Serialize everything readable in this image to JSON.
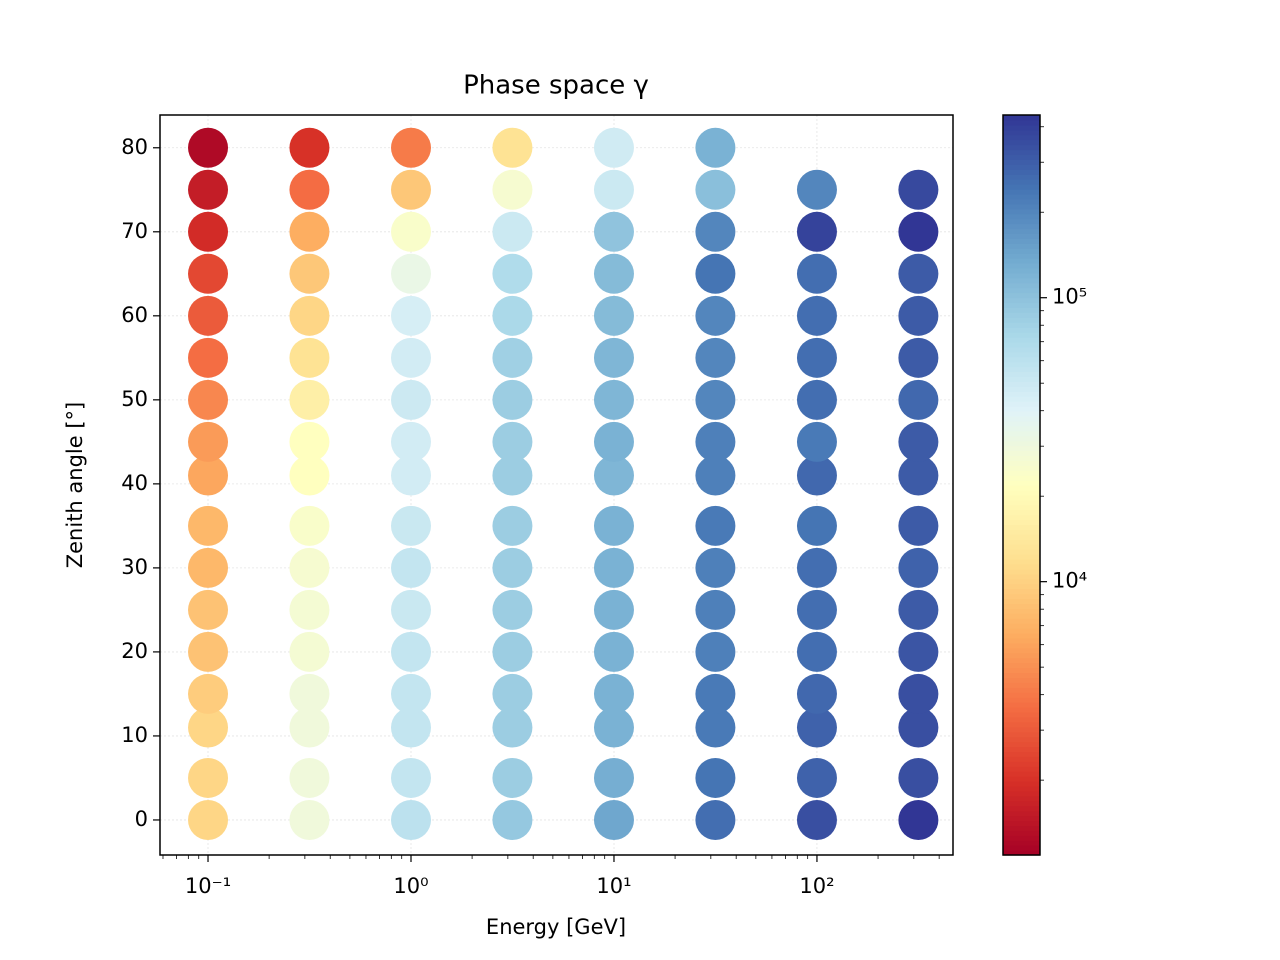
{
  "chart_data": {
    "type": "scatter",
    "title": "Phase space γ",
    "x_label": "Energy [GeV]",
    "y_label": "Zenith angle [°]",
    "xlog": true,
    "grid": true,
    "xlim": [
      0.058,
      468
    ],
    "ylim": [
      -4.17,
      83.9
    ],
    "xticks": [
      {
        "value": 0.1,
        "label": "10⁻¹"
      },
      {
        "value": 1,
        "label": "10⁰"
      },
      {
        "value": 10,
        "label": "10¹"
      },
      {
        "value": 100,
        "label": "10²"
      }
    ],
    "yticks": [
      0,
      10,
      20,
      30,
      40,
      50,
      60,
      70,
      80
    ],
    "colormap": [
      "#a50026",
      "#d73027",
      "#f46d43",
      "#fdae61",
      "#fee090",
      "#ffffbf",
      "#e0f3f8",
      "#abd9e9",
      "#74add1",
      "#4575b4",
      "#313695"
    ],
    "colorbar": {
      "log": true,
      "lim": [
        1090,
        440000
      ],
      "ticks": [
        {
          "value": 10000,
          "label": "10⁴"
        },
        {
          "value": 100000,
          "label": "10⁵"
        }
      ]
    },
    "columns": [
      {
        "x": 0.1,
        "y": [
          0,
          5,
          11,
          15,
          20,
          25,
          30,
          35,
          41,
          45,
          50,
          55,
          60,
          65,
          70,
          75,
          80
        ],
        "values": [
          10600,
          10600,
          10600,
          9440,
          8380,
          8380,
          7430,
          7430,
          6210,
          5510,
          4600,
          3610,
          3020,
          2520,
          1870,
          1560,
          1230
        ]
      },
      {
        "x": 0.316,
        "y": [
          0,
          5,
          11,
          15,
          20,
          25,
          30,
          35,
          41,
          45,
          50,
          55,
          60,
          65,
          70,
          75,
          80
        ],
        "values": [
          29500,
          29500,
          29500,
          29500,
          27000,
          27000,
          26200,
          24700,
          21900,
          21900,
          16200,
          12700,
          10600,
          8900,
          6600,
          3600,
          2000
        ]
      },
      {
        "x": 1,
        "y": [
          0,
          5,
          11,
          15,
          20,
          25,
          30,
          35,
          41,
          45,
          50,
          55,
          60,
          65,
          70,
          75,
          80
        ],
        "values": [
          60000,
          55500,
          55500,
          55500,
          55500,
          52000,
          55500,
          52000,
          47000,
          47000,
          50000,
          47000,
          44500,
          33000,
          24700,
          8900,
          4100
        ]
      },
      {
        "x": 3.16,
        "y": [
          0,
          5,
          11,
          15,
          20,
          25,
          30,
          35,
          41,
          45,
          50,
          55,
          60,
          65,
          70,
          75,
          80
        ],
        "values": [
          92200,
          86000,
          86000,
          86000,
          86000,
          86000,
          86000,
          86000,
          86000,
          86000,
          86000,
          81800,
          72600,
          68400,
          50700,
          26200,
          12700
        ]
      },
      {
        "x": 10,
        "y": [
          0,
          5,
          11,
          15,
          20,
          25,
          30,
          35,
          41,
          45,
          50,
          55,
          60,
          65,
          70,
          75,
          80
        ],
        "values": [
          141000,
          130000,
          124000,
          124000,
          124000,
          124000,
          124000,
          124000,
          117000,
          124000,
          117000,
          117000,
          110000,
          110000,
          98000,
          50700,
          47800
        ]
      },
      {
        "x": 31.6,
        "y": [
          0,
          5,
          11,
          15,
          20,
          25,
          30,
          35,
          41,
          45,
          50,
          55,
          60,
          65,
          70,
          75,
          80
        ],
        "values": [
          257000,
          241000,
          228000,
          228000,
          215000,
          215000,
          215000,
          228000,
          215000,
          215000,
          201000,
          201000,
          201000,
          241000,
          201000,
          104000,
          124000
        ]
      },
      {
        "x": 100,
        "y": [
          0,
          5,
          11,
          15,
          20,
          25,
          30,
          35,
          41,
          45,
          50,
          55,
          60,
          65,
          70,
          75
        ],
        "values": [
          346000,
          289000,
          289000,
          273000,
          257000,
          257000,
          257000,
          241000,
          273000,
          228000,
          257000,
          257000,
          257000,
          257000,
          390000,
          201000
        ]
      },
      {
        "x": 316,
        "y": [
          0,
          5,
          11,
          15,
          20,
          25,
          30,
          35,
          41,
          45,
          50,
          55,
          60,
          65,
          70,
          75
        ],
        "values": [
          440000,
          346000,
          346000,
          346000,
          326000,
          308000,
          289000,
          308000,
          308000,
          308000,
          273000,
          308000,
          308000,
          308000,
          440000,
          367000
        ]
      }
    ]
  }
}
